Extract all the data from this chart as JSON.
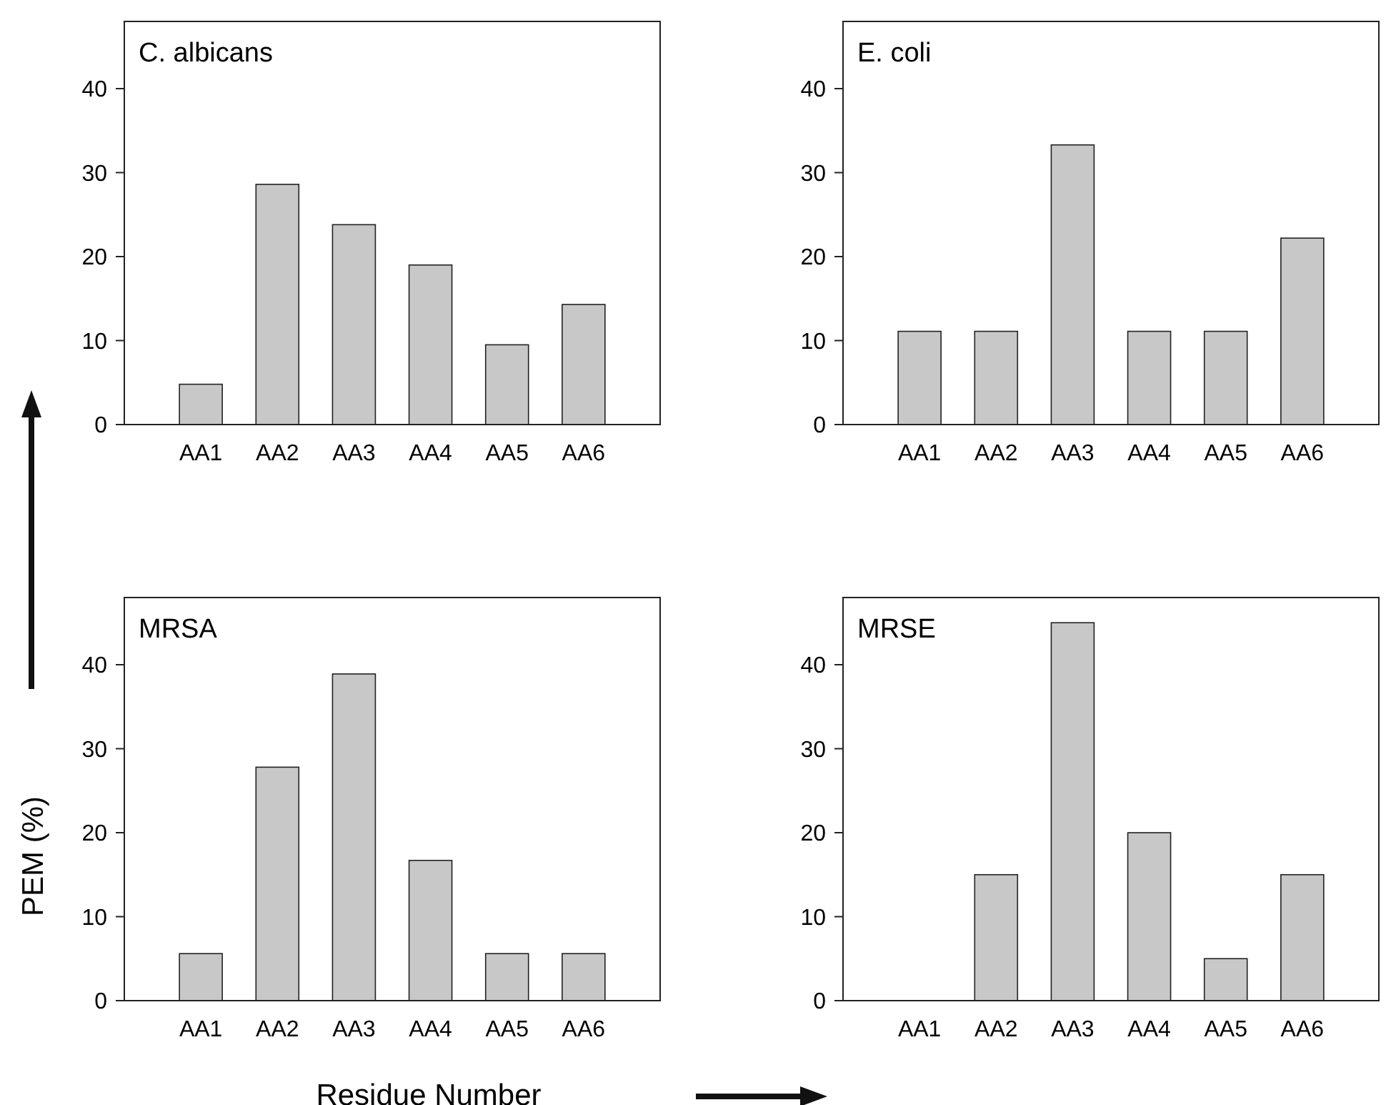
{
  "chart_data": [
    {
      "type": "bar",
      "title": "C. albicans",
      "categories": [
        "AA1",
        "AA2",
        "AA3",
        "AA4",
        "AA5",
        "AA6"
      ],
      "values": [
        4.8,
        28.6,
        23.8,
        19.0,
        9.5,
        14.3
      ],
      "color": "#c8c8c8",
      "ylim": [
        0,
        48
      ],
      "yticks": [
        0,
        10,
        20,
        30,
        40
      ],
      "grid": false
    },
    {
      "type": "bar",
      "title": "E. coli",
      "categories": [
        "AA1",
        "AA2",
        "AA3",
        "AA4",
        "AA5",
        "AA6"
      ],
      "values": [
        11.1,
        11.1,
        33.3,
        11.1,
        11.1,
        22.2
      ],
      "color": "#c8c8c8",
      "ylim": [
        0,
        48
      ],
      "yticks": [
        0,
        10,
        20,
        30,
        40
      ],
      "grid": false
    },
    {
      "type": "bar",
      "title": "MRSA",
      "xlabel": "Residue Number",
      "ylabel": "PEM (%)",
      "categories": [
        "AA1",
        "AA2",
        "AA3",
        "AA4",
        "AA5",
        "AA6"
      ],
      "values": [
        5.6,
        27.8,
        38.9,
        16.7,
        5.6,
        5.6
      ],
      "color": "#c8c8c8",
      "ylim": [
        0,
        48
      ],
      "yticks": [
        0,
        10,
        20,
        30,
        40
      ],
      "grid": false
    },
    {
      "type": "bar",
      "title": "MRSE",
      "categories": [
        "AA1",
        "AA2",
        "AA3",
        "AA4",
        "AA5",
        "AA6"
      ],
      "values": [
        0,
        15,
        45,
        20,
        5,
        15
      ],
      "color": "#c8c8c8",
      "ylim": [
        0,
        48
      ],
      "yticks": [
        0,
        10,
        20,
        30,
        40
      ],
      "grid": false
    }
  ]
}
